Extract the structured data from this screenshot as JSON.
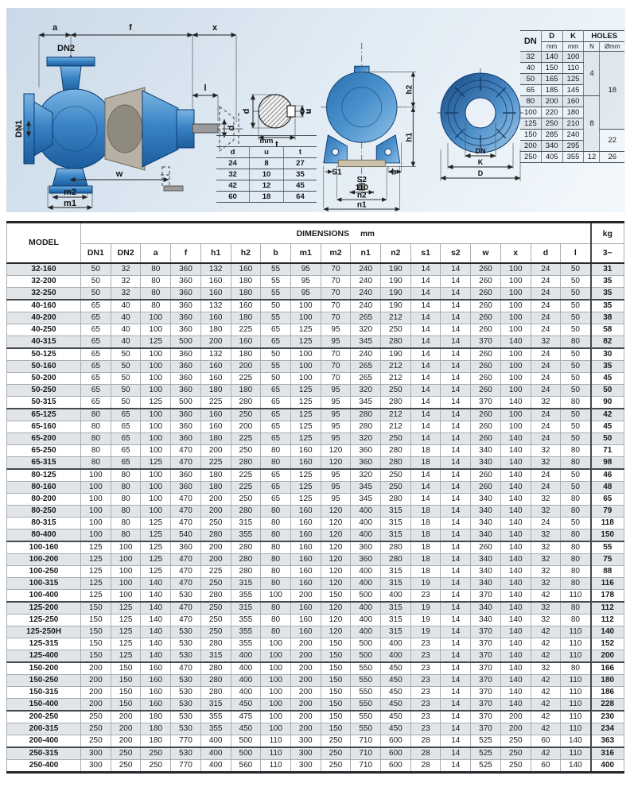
{
  "side_view": {
    "a": "a",
    "f": "f",
    "x": "x",
    "dn2": "DN2",
    "dn1": "DN1",
    "l": "l",
    "d": "d",
    "w": "w",
    "m2": "m2",
    "m1": "m1"
  },
  "section_view": {
    "d": "d",
    "u": "u",
    "t": "t"
  },
  "front_view": {
    "h2": "h2",
    "h1": "h1",
    "s1": "S1",
    "s2": "S2",
    "dim110": "110",
    "n2": "n2",
    "n1": "n1",
    "b": "b"
  },
  "flange_view": {
    "dn": "DN",
    "k": "K",
    "d": "D"
  },
  "shaft_table": {
    "unit": "mm",
    "columns": [
      "d",
      "u",
      "t"
    ],
    "rows": [
      [
        "24",
        "8",
        "27"
      ],
      [
        "32",
        "10",
        "35"
      ],
      [
        "42",
        "12",
        "45"
      ],
      [
        "60",
        "18",
        "64"
      ]
    ]
  },
  "flange_table": {
    "dn": "DN",
    "d": "D",
    "k": "K",
    "holes": "HOLES",
    "mm": "mm",
    "n": "N",
    "o": "Ømm",
    "rows": [
      [
        "32",
        "140",
        "100"
      ],
      [
        "40",
        "150",
        "110"
      ],
      [
        "50",
        "165",
        "125"
      ],
      [
        "65",
        "185",
        "145"
      ],
      [
        "80",
        "200",
        "160"
      ],
      [
        "100",
        "220",
        "180"
      ],
      [
        "125",
        "250",
        "210"
      ],
      [
        "150",
        "285",
        "240"
      ],
      [
        "200",
        "340",
        "295"
      ],
      [
        "250",
        "405",
        "355"
      ]
    ],
    "n_col": [
      {
        "v": "4",
        "span": 4
      },
      {
        "v": "8",
        "span": 5
      },
      {
        "v": "12",
        "span": 1
      }
    ],
    "o_col": [
      {
        "v": "18",
        "span": 7
      },
      {
        "v": "22",
        "span": 2
      },
      {
        "v": "26",
        "span": 1
      }
    ]
  },
  "dimensions_table": {
    "model_header": "MODEL",
    "title": "DIMENSIONS",
    "unit": "mm",
    "kg": "kg",
    "kg_sub": "3~",
    "columns": [
      "DN1",
      "DN2",
      "a",
      "f",
      "h1",
      "h2",
      "b",
      "m1",
      "m2",
      "n1",
      "n2",
      "s1",
      "s2",
      "w",
      "x",
      "d",
      "l"
    ],
    "rows": [
      {
        "model": "32-160",
        "v": [
          50,
          32,
          80,
          360,
          132,
          160,
          55,
          95,
          70,
          240,
          190,
          14,
          14,
          260,
          100,
          24,
          50
        ],
        "kg": 31
      },
      {
        "model": "32-200",
        "v": [
          50,
          32,
          80,
          360,
          160,
          180,
          55,
          95,
          70,
          240,
          190,
          14,
          14,
          260,
          100,
          24,
          50
        ],
        "kg": 35
      },
      {
        "model": "32-250",
        "v": [
          50,
          32,
          80,
          360,
          160,
          180,
          55,
          95,
          70,
          240,
          190,
          14,
          14,
          260,
          100,
          24,
          50
        ],
        "kg": 35
      },
      {
        "model": "40-160",
        "v": [
          65,
          40,
          80,
          360,
          132,
          160,
          50,
          100,
          70,
          240,
          190,
          14,
          14,
          260,
          100,
          24,
          50
        ],
        "kg": 35
      },
      {
        "model": "40-200",
        "v": [
          65,
          40,
          100,
          360,
          160,
          180,
          55,
          100,
          70,
          265,
          212,
          14,
          14,
          260,
          100,
          24,
          50
        ],
        "kg": 38
      },
      {
        "model": "40-250",
        "v": [
          65,
          40,
          100,
          360,
          180,
          225,
          65,
          125,
          95,
          320,
          250,
          14,
          14,
          260,
          100,
          24,
          50
        ],
        "kg": 58
      },
      {
        "model": "40-315",
        "v": [
          65,
          40,
          125,
          500,
          200,
          160,
          65,
          125,
          95,
          345,
          280,
          14,
          14,
          370,
          140,
          32,
          80
        ],
        "kg": 82
      },
      {
        "model": "50-125",
        "v": [
          65,
          50,
          100,
          360,
          132,
          180,
          50,
          100,
          70,
          240,
          190,
          14,
          14,
          260,
          100,
          24,
          50
        ],
        "kg": 30
      },
      {
        "model": "50-160",
        "v": [
          65,
          50,
          100,
          360,
          160,
          200,
          55,
          100,
          70,
          265,
          212,
          14,
          14,
          260,
          100,
          24,
          50
        ],
        "kg": 35
      },
      {
        "model": "50-200",
        "v": [
          65,
          50,
          100,
          360,
          160,
          225,
          50,
          100,
          70,
          265,
          212,
          14,
          14,
          260,
          100,
          24,
          50
        ],
        "kg": 45
      },
      {
        "model": "50-250",
        "v": [
          65,
          50,
          100,
          360,
          180,
          180,
          65,
          125,
          95,
          320,
          250,
          14,
          14,
          260,
          100,
          24,
          50
        ],
        "kg": 50
      },
      {
        "model": "50-315",
        "v": [
          65,
          50,
          125,
          500,
          225,
          280,
          65,
          125,
          95,
          345,
          280,
          14,
          14,
          370,
          140,
          32,
          80
        ],
        "kg": 90
      },
      {
        "model": "65-125",
        "v": [
          80,
          65,
          100,
          360,
          160,
          250,
          65,
          125,
          95,
          280,
          212,
          14,
          14,
          260,
          100,
          24,
          50
        ],
        "kg": 42
      },
      {
        "model": "65-160",
        "v": [
          80,
          65,
          100,
          360,
          160,
          200,
          65,
          125,
          95,
          280,
          212,
          14,
          14,
          260,
          100,
          24,
          50
        ],
        "kg": 45
      },
      {
        "model": "65-200",
        "v": [
          80,
          65,
          100,
          360,
          180,
          225,
          65,
          125,
          95,
          320,
          250,
          14,
          14,
          260,
          140,
          24,
          50
        ],
        "kg": 50
      },
      {
        "model": "65-250",
        "v": [
          80,
          65,
          100,
          470,
          200,
          250,
          80,
          160,
          120,
          360,
          280,
          18,
          14,
          340,
          140,
          32,
          80
        ],
        "kg": 71
      },
      {
        "model": "65-315",
        "v": [
          80,
          65,
          125,
          470,
          225,
          280,
          80,
          160,
          120,
          360,
          280,
          18,
          14,
          340,
          140,
          32,
          80
        ],
        "kg": 98
      },
      {
        "model": "80-125",
        "v": [
          100,
          80,
          100,
          360,
          180,
          225,
          65,
          125,
          95,
          320,
          250,
          14,
          14,
          260,
          140,
          24,
          50
        ],
        "kg": 46
      },
      {
        "model": "80-160",
        "v": [
          100,
          80,
          100,
          360,
          180,
          225,
          65,
          125,
          95,
          345,
          250,
          14,
          14,
          260,
          140,
          24,
          50
        ],
        "kg": 48
      },
      {
        "model": "80-200",
        "v": [
          100,
          80,
          100,
          470,
          200,
          250,
          65,
          125,
          95,
          345,
          280,
          14,
          14,
          340,
          140,
          32,
          80
        ],
        "kg": 65
      },
      {
        "model": "80-250",
        "v": [
          100,
          80,
          100,
          470,
          200,
          280,
          80,
          160,
          120,
          400,
          315,
          18,
          14,
          340,
          140,
          32,
          80
        ],
        "kg": 79
      },
      {
        "model": "80-315",
        "v": [
          100,
          80,
          125,
          470,
          250,
          315,
          80,
          160,
          120,
          400,
          315,
          18,
          14,
          340,
          140,
          24,
          50
        ],
        "kg": 118
      },
      {
        "model": "80-400",
        "v": [
          100,
          80,
          125,
          540,
          280,
          355,
          80,
          160,
          120,
          400,
          315,
          18,
          14,
          340,
          140,
          32,
          80
        ],
        "kg": 150
      },
      {
        "model": "100-160",
        "v": [
          125,
          100,
          125,
          360,
          200,
          280,
          80,
          160,
          120,
          360,
          280,
          18,
          14,
          260,
          140,
          32,
          80
        ],
        "kg": 55
      },
      {
        "model": "100-200",
        "v": [
          125,
          100,
          125,
          470,
          200,
          280,
          80,
          160,
          120,
          360,
          280,
          18,
          14,
          340,
          140,
          32,
          80
        ],
        "kg": 75
      },
      {
        "model": "100-250",
        "v": [
          125,
          100,
          125,
          470,
          225,
          280,
          80,
          160,
          120,
          400,
          315,
          18,
          14,
          340,
          140,
          32,
          80
        ],
        "kg": 88
      },
      {
        "model": "100-315",
        "v": [
          125,
          100,
          140,
          470,
          250,
          315,
          80,
          160,
          120,
          400,
          315,
          19,
          14,
          340,
          140,
          32,
          80
        ],
        "kg": 116
      },
      {
        "model": "100-400",
        "v": [
          125,
          100,
          140,
          530,
          280,
          355,
          100,
          200,
          150,
          500,
          400,
          23,
          14,
          370,
          140,
          42,
          110
        ],
        "kg": 178
      },
      {
        "model": "125-200",
        "v": [
          150,
          125,
          140,
          470,
          250,
          315,
          80,
          160,
          120,
          400,
          315,
          19,
          14,
          340,
          140,
          32,
          80
        ],
        "kg": 112
      },
      {
        "model": "125-250",
        "v": [
          150,
          125,
          140,
          470,
          250,
          355,
          80,
          160,
          120,
          400,
          315,
          19,
          14,
          340,
          140,
          32,
          80
        ],
        "kg": 112
      },
      {
        "model": "125-250H",
        "v": [
          150,
          125,
          140,
          530,
          250,
          355,
          80,
          160,
          120,
          400,
          315,
          19,
          14,
          370,
          140,
          42,
          110
        ],
        "kg": 140
      },
      {
        "model": "125-315",
        "v": [
          150,
          125,
          140,
          530,
          280,
          355,
          100,
          200,
          150,
          500,
          400,
          23,
          14,
          370,
          140,
          42,
          110
        ],
        "kg": 152
      },
      {
        "model": "125-400",
        "v": [
          150,
          125,
          140,
          530,
          315,
          400,
          100,
          200,
          150,
          500,
          400,
          23,
          14,
          370,
          140,
          42,
          110
        ],
        "kg": 200
      },
      {
        "model": "150-200",
        "v": [
          200,
          150,
          160,
          470,
          280,
          400,
          100,
          200,
          150,
          550,
          450,
          23,
          14,
          370,
          140,
          32,
          80
        ],
        "kg": 166
      },
      {
        "model": "150-250",
        "v": [
          200,
          150,
          160,
          530,
          280,
          400,
          100,
          200,
          150,
          550,
          450,
          23,
          14,
          370,
          140,
          42,
          110
        ],
        "kg": 180
      },
      {
        "model": "150-315",
        "v": [
          200,
          150,
          160,
          530,
          280,
          400,
          100,
          200,
          150,
          550,
          450,
          23,
          14,
          370,
          140,
          42,
          110
        ],
        "kg": 186
      },
      {
        "model": "150-400",
        "v": [
          200,
          150,
          160,
          530,
          315,
          450,
          100,
          200,
          150,
          550,
          450,
          23,
          14,
          370,
          140,
          42,
          110
        ],
        "kg": 228
      },
      {
        "model": "200-250",
        "v": [
          250,
          200,
          180,
          530,
          355,
          475,
          100,
          200,
          150,
          550,
          450,
          23,
          14,
          370,
          200,
          42,
          110
        ],
        "kg": 230
      },
      {
        "model": "200-315",
        "v": [
          250,
          200,
          180,
          530,
          355,
          450,
          100,
          200,
          150,
          550,
          450,
          23,
          14,
          370,
          200,
          42,
          110
        ],
        "kg": 234
      },
      {
        "model": "200-400",
        "v": [
          250,
          200,
          180,
          770,
          400,
          500,
          110,
          300,
          250,
          710,
          600,
          28,
          14,
          525,
          250,
          60,
          140
        ],
        "kg": 363
      },
      {
        "model": "250-315",
        "v": [
          300,
          250,
          250,
          530,
          400,
          500,
          110,
          300,
          250,
          710,
          600,
          28,
          14,
          525,
          250,
          42,
          110
        ],
        "kg": 316
      },
      {
        "model": "250-400",
        "v": [
          300,
          250,
          250,
          770,
          400,
          560,
          110,
          300,
          250,
          710,
          600,
          28,
          14,
          525,
          250,
          60,
          140
        ],
        "kg": 400
      }
    ]
  }
}
